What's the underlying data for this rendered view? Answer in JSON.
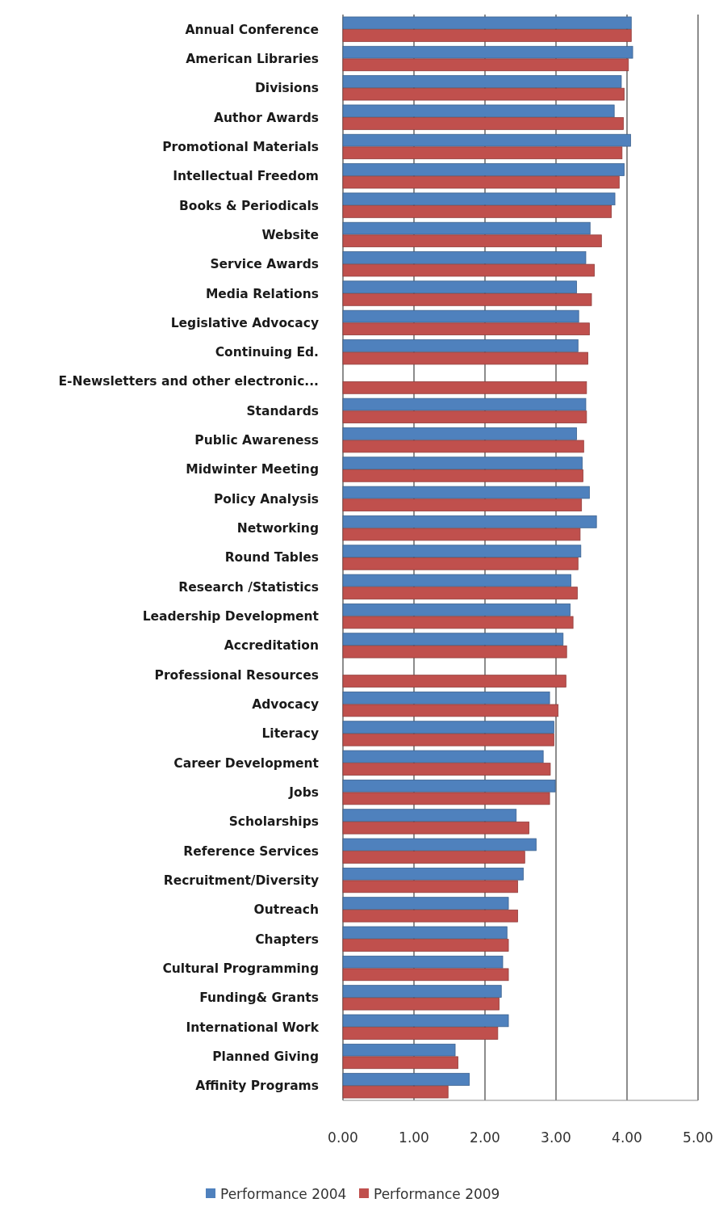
{
  "chart_data": {
    "type": "bar",
    "orientation": "horizontal",
    "categories": [
      "Annual Conference",
      "American Libraries",
      "Divisions",
      "Author Awards",
      "Promotional Materials",
      "Intellectual Freedom",
      "Books & Periodicals",
      "Website",
      "Service Awards",
      "Media Relations",
      "Legislative Advocacy",
      "Continuing Ed.",
      "E-Newsletters and other electronic...",
      "Standards",
      "Public Awareness",
      "Midwinter Meeting",
      "Policy Analysis",
      "Networking",
      "Round Tables",
      "Research /Statistics",
      "Leadership Development",
      "Accreditation",
      "Professional Resources",
      "Advocacy",
      "Literacy",
      "Career Development",
      "Jobs",
      "Scholarships",
      "Reference Services",
      "Recruitment/Diversity",
      "Outreach",
      "Chapters",
      "Cultural Programming",
      "Funding& Grants",
      "International Work",
      "Planned Giving",
      "Affinity Programs"
    ],
    "series": [
      {
        "name": "Performance 2004",
        "color": "#4f81bd",
        "values": [
          4.06,
          4.08,
          3.92,
          3.82,
          4.05,
          3.96,
          3.83,
          3.48,
          3.42,
          3.29,
          3.32,
          3.31,
          0,
          3.42,
          3.29,
          3.37,
          3.47,
          3.57,
          3.35,
          3.21,
          3.2,
          3.1,
          0,
          2.91,
          2.97,
          2.82,
          2.99,
          2.44,
          2.72,
          2.54,
          2.33,
          2.31,
          2.25,
          2.23,
          2.33,
          1.58,
          1.78
        ]
      },
      {
        "name": "Performance 2009",
        "color": "#c0504d",
        "values": [
          4.06,
          4.02,
          3.96,
          3.95,
          3.93,
          3.89,
          3.78,
          3.64,
          3.54,
          3.5,
          3.47,
          3.45,
          3.43,
          3.43,
          3.39,
          3.38,
          3.36,
          3.34,
          3.31,
          3.3,
          3.24,
          3.15,
          3.14,
          3.03,
          2.97,
          2.92,
          2.91,
          2.62,
          2.56,
          2.46,
          2.46,
          2.33,
          2.33,
          2.2,
          2.18,
          1.62,
          1.48
        ]
      }
    ],
    "xlim": [
      0,
      5
    ],
    "xticks": [
      {
        "value": 0,
        "label": "0.00"
      },
      {
        "value": 1,
        "label": "1.00"
      },
      {
        "value": 2,
        "label": "2.00"
      },
      {
        "value": 3,
        "label": "3.00"
      },
      {
        "value": 4,
        "label": "4.00"
      },
      {
        "value": 5,
        "label": "5.00"
      }
    ],
    "grid": "x",
    "legend": "bottom"
  }
}
